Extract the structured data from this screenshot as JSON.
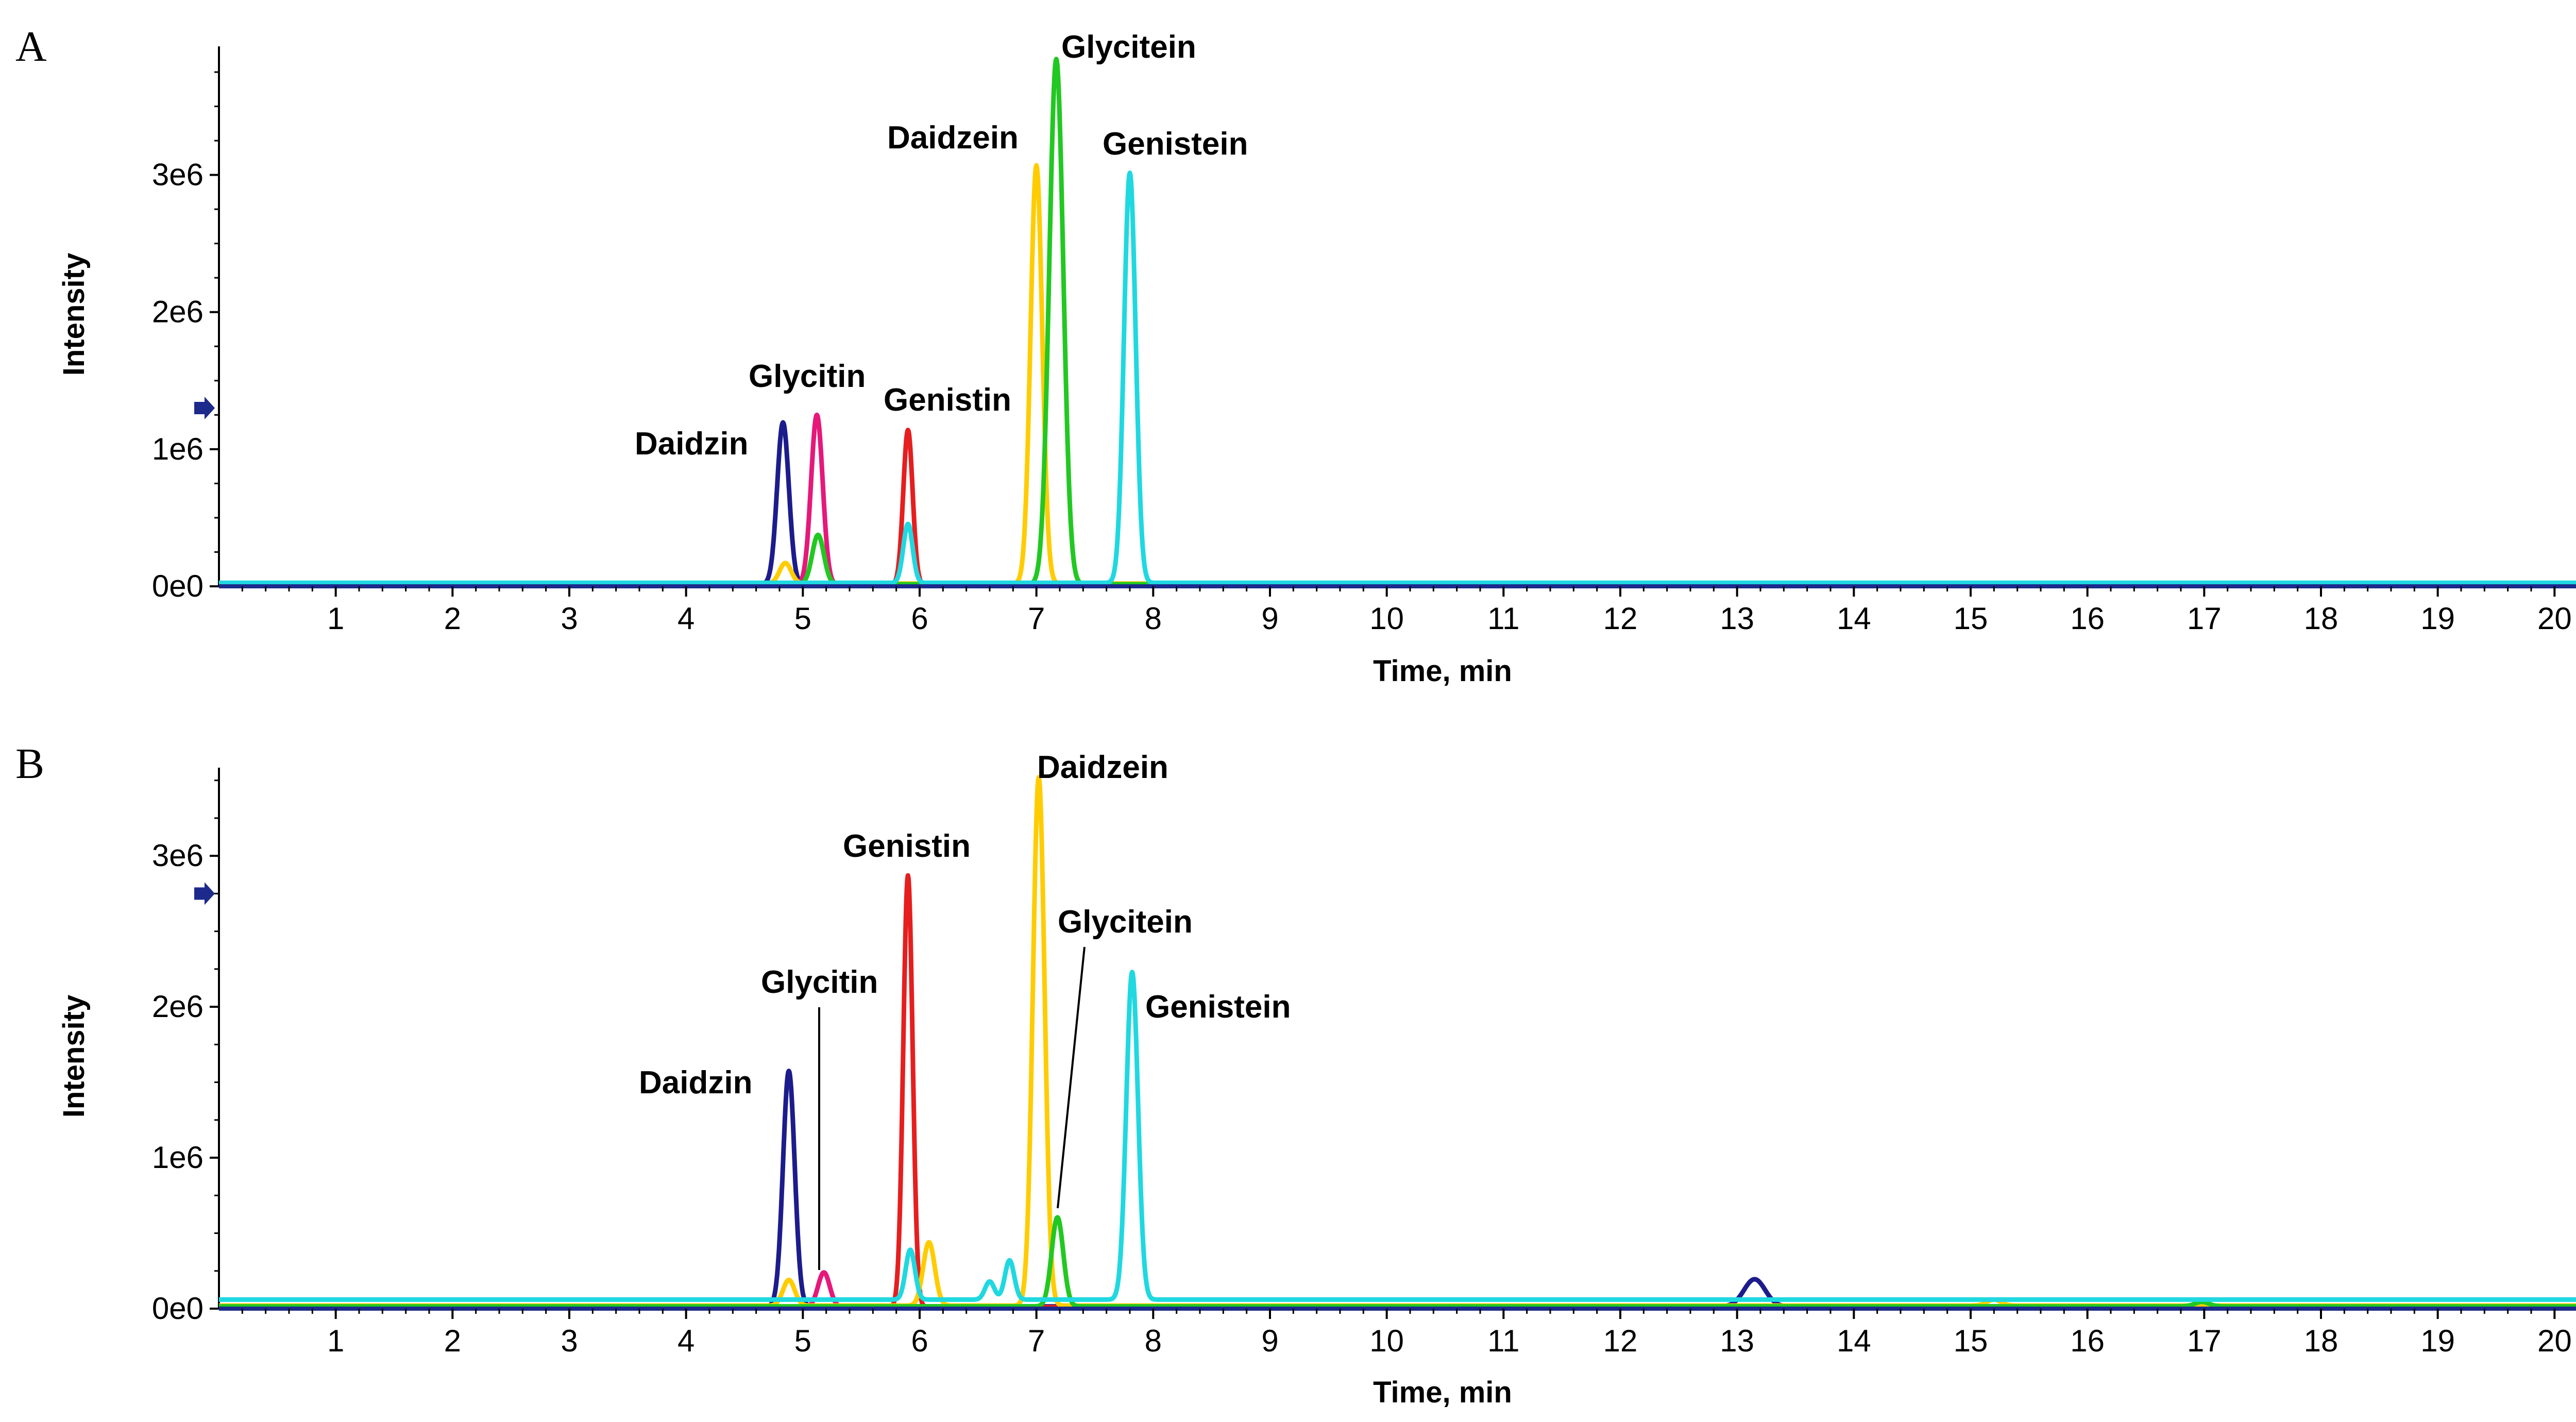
{
  "chart_data": [
    {
      "type": "line",
      "panel": "A",
      "xlabel": "Time, min",
      "ylabel": "Intensity",
      "xlim": [
        0,
        21
      ],
      "ylim": [
        0,
        3900000
      ],
      "x_ticks": [
        "1",
        "2",
        "3",
        "4",
        "5",
        "6",
        "7",
        "8",
        "9",
        "10",
        "11",
        "12",
        "13",
        "14",
        "15",
        "16",
        "17",
        "18",
        "19",
        "20"
      ],
      "y_ticks": [
        {
          "value": 0,
          "label": "0e0"
        },
        {
          "value": 1000000,
          "label": "1e6"
        },
        {
          "value": 2000000,
          "label": "2e6"
        },
        {
          "value": 3000000,
          "label": "3e6"
        }
      ],
      "marker_level": 1300000,
      "series": [
        {
          "color": "#1c1c8c",
          "peaks": [
            {
              "x": 4.83,
              "y": 1180000,
              "w": 0.05
            }
          ],
          "baseline": 15000
        },
        {
          "color": "#e6187a",
          "peaks": [
            {
              "x": 5.12,
              "y": 1240000,
              "w": 0.05
            }
          ],
          "baseline": 10000
        },
        {
          "color": "#e61e1e",
          "peaks": [
            {
              "x": 5.9,
              "y": 1130000,
              "w": 0.04
            }
          ],
          "baseline": 10000
        },
        {
          "color": "#ffcc00",
          "peaks": [
            {
              "x": 4.85,
              "y": 150000,
              "w": 0.05
            },
            {
              "x": 7.0,
              "y": 3050000,
              "w": 0.05
            }
          ],
          "baseline": 20000
        },
        {
          "color": "#22c822",
          "peaks": [
            {
              "x": 5.13,
              "y": 360000,
              "w": 0.05
            },
            {
              "x": 7.17,
              "y": 3830000,
              "w": 0.06
            }
          ],
          "baseline": 15000
        },
        {
          "color": "#1fd8e0",
          "peaks": [
            {
              "x": 5.9,
              "y": 430000,
              "w": 0.04
            },
            {
              "x": 7.8,
              "y": 2990000,
              "w": 0.05
            }
          ],
          "baseline": 25000
        }
      ],
      "annotations": [
        {
          "text": "Glycitein",
          "x": 7.17,
          "y": 3830000
        },
        {
          "text": "Daidzein",
          "x": 7.0,
          "y": 3050000
        },
        {
          "text": "Genistein",
          "x": 7.8,
          "y": 2990000
        },
        {
          "text": "Glycitin",
          "x": 5.12,
          "y": 1240000
        },
        {
          "text": "Genistin",
          "x": 5.9,
          "y": 1130000
        },
        {
          "text": "Daidzin",
          "x": 4.83,
          "y": 1180000
        }
      ]
    },
    {
      "type": "line",
      "panel": "B",
      "xlabel": "Time, min",
      "ylabel": "Intensity",
      "xlim": [
        0,
        21
      ],
      "ylim": [
        0,
        3550000
      ],
      "x_ticks": [
        "1",
        "2",
        "3",
        "4",
        "5",
        "6",
        "7",
        "8",
        "9",
        "10",
        "11",
        "12",
        "13",
        "14",
        "15",
        "16",
        "17",
        "18",
        "19",
        "20"
      ],
      "y_ticks": [
        {
          "value": 0,
          "label": "0e0"
        },
        {
          "value": 1000000,
          "label": "1e6"
        },
        {
          "value": 2000000,
          "label": "2e6"
        },
        {
          "value": 3000000,
          "label": "3e6"
        }
      ],
      "marker_level": 2750000,
      "series": [
        {
          "color": "#1c1c8c",
          "peaks": [
            {
              "x": 4.88,
              "y": 1560000,
              "w": 0.05
            },
            {
              "x": 13.15,
              "y": 180000,
              "w": 0.09
            }
          ],
          "baseline": 15000
        },
        {
          "color": "#e6187a",
          "peaks": [
            {
              "x": 5.18,
              "y": 230000,
              "w": 0.05
            }
          ],
          "baseline": 10000
        },
        {
          "color": "#e61e1e",
          "peaks": [
            {
              "x": 5.9,
              "y": 2860000,
              "w": 0.04
            }
          ],
          "baseline": 10000
        },
        {
          "color": "#ffcc00",
          "peaks": [
            {
              "x": 4.88,
              "y": 170000,
              "w": 0.05
            },
            {
              "x": 6.08,
              "y": 420000,
              "w": 0.05
            },
            {
              "x": 7.02,
              "y": 3500000,
              "w": 0.05
            },
            {
              "x": 15.2,
              "y": 40000,
              "w": 0.06
            }
          ],
          "baseline": 20000
        },
        {
          "color": "#22c822",
          "peaks": [
            {
              "x": 7.18,
              "y": 590000,
              "w": 0.05
            },
            {
              "x": 16.98,
              "y": 30000,
              "w": 0.06
            }
          ],
          "baseline": 15000
        },
        {
          "color": "#1fd8e0",
          "peaks": [
            {
              "x": 5.92,
              "y": 330000,
              "w": 0.04
            },
            {
              "x": 6.6,
              "y": 120000,
              "w": 0.04
            },
            {
              "x": 6.77,
              "y": 260000,
              "w": 0.04
            },
            {
              "x": 7.82,
              "y": 2170000,
              "w": 0.05
            }
          ],
          "baseline": 60000
        }
      ],
      "annotations": [
        {
          "text": "Daidzein",
          "x": 7.02,
          "y": 3500000
        },
        {
          "text": "Genistin",
          "x": 5.9,
          "y": 2860000
        },
        {
          "text": "Glycitein",
          "x": 7.18,
          "y": 590000
        },
        {
          "text": "Glycitin",
          "x": 5.18,
          "y": 230000
        },
        {
          "text": "Genistein",
          "x": 7.82,
          "y": 2170000
        },
        {
          "text": "Daidzin",
          "x": 4.88,
          "y": 1560000
        }
      ]
    }
  ]
}
